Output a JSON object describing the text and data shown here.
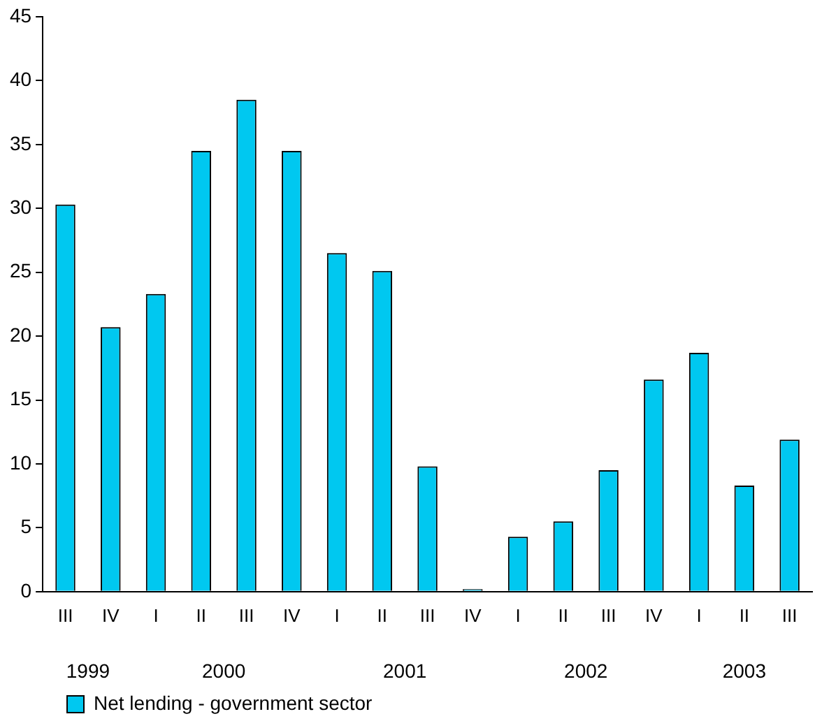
{
  "chart_data": {
    "type": "bar",
    "categories": [
      "III",
      "IV",
      "I",
      "II",
      "III",
      "IV",
      "I",
      "II",
      "III",
      "IV",
      "I",
      "II",
      "III",
      "IV",
      "I",
      "II",
      "III"
    ],
    "series": [
      {
        "name": "Net lending - government sector",
        "color": "#00c8f0",
        "values": [
          30.3,
          20.7,
          23.3,
          34.5,
          38.5,
          34.5,
          26.5,
          25.1,
          9.8,
          0.2,
          4.3,
          5.5,
          9.5,
          16.6,
          18.7,
          8.3,
          11.9
        ]
      }
    ],
    "annotations": [
      "1999",
      "2000",
      "2001",
      "2002",
      "2003"
    ],
    "ylim": [
      0,
      45
    ],
    "yticks": [
      0,
      5,
      10,
      15,
      20,
      25,
      30,
      35,
      40,
      45
    ],
    "grid": false,
    "legend": "bottom left"
  }
}
